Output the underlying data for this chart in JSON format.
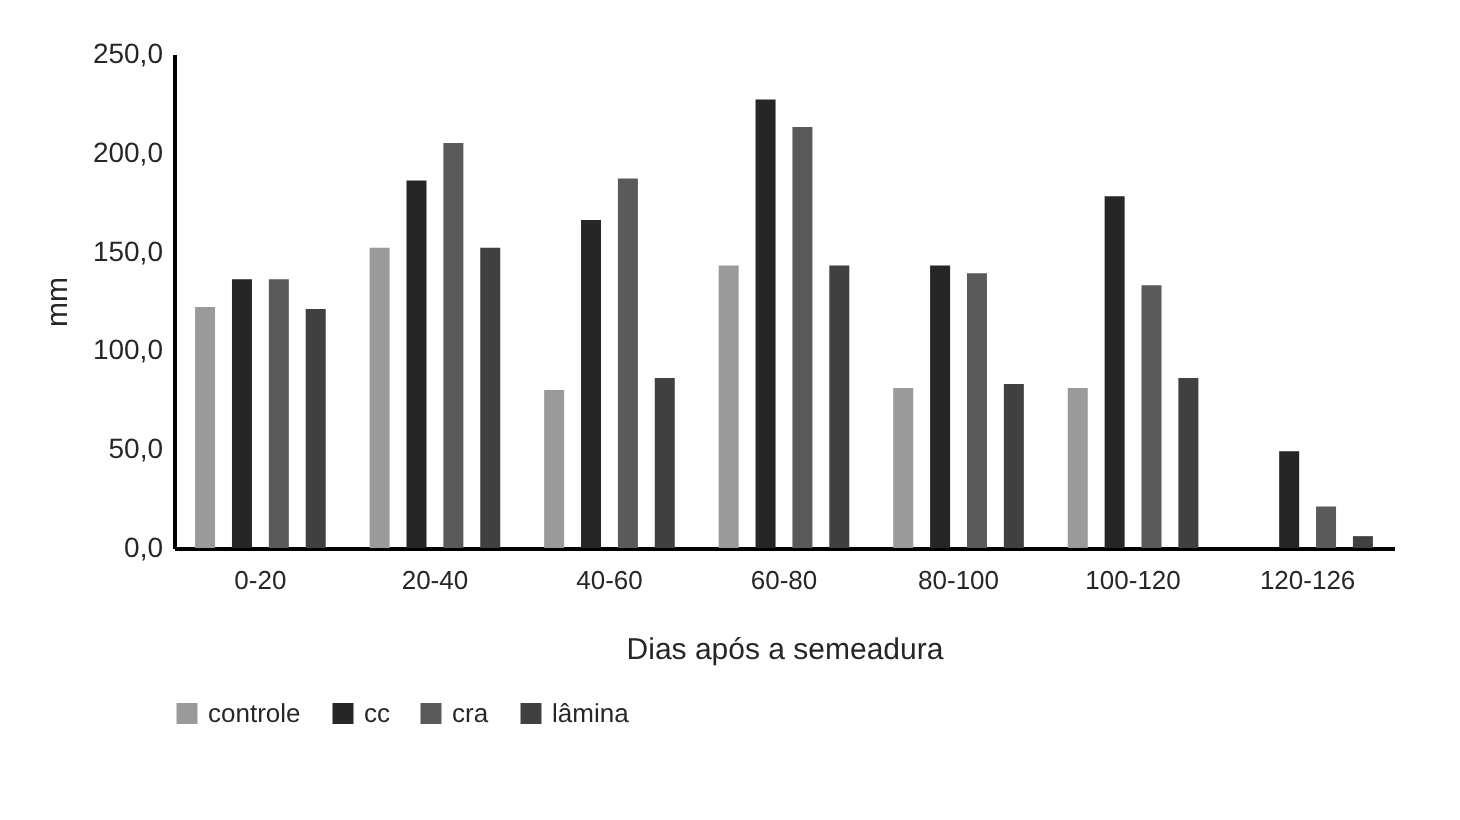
{
  "chart_data": {
    "type": "bar",
    "xlabel": "Dias após a semeadura",
    "ylabel": "mm",
    "categories": [
      "0-20",
      "20-40",
      "40-60",
      "60-80",
      "80-100",
      "100-120",
      "120-126"
    ],
    "series": [
      {
        "name": "controle",
        "color": "#9a9a9a",
        "values": [
          122,
          152,
          80,
          143,
          81,
          81,
          null
        ]
      },
      {
        "name": "cc",
        "color": "#262626",
        "values": [
          136,
          186,
          166,
          227,
          143,
          178,
          49
        ]
      },
      {
        "name": "cra",
        "color": "#5a5a5a",
        "values": [
          136,
          205,
          187,
          213,
          139,
          133,
          21
        ]
      },
      {
        "name": "lâmina",
        "color": "#404040",
        "values": [
          121,
          152,
          86,
          143,
          83,
          86,
          6
        ]
      }
    ],
    "ylim": [
      0,
      250
    ],
    "yticks": [
      {
        "value": 0,
        "label": "0,0"
      },
      {
        "value": 50,
        "label": "50,0"
      },
      {
        "value": 100,
        "label": "100,0"
      },
      {
        "value": 150,
        "label": "150,0"
      },
      {
        "value": 200,
        "label": "200,0"
      },
      {
        "value": 250,
        "label": "250,0"
      }
    ],
    "grid": false,
    "legend": "bottom"
  }
}
